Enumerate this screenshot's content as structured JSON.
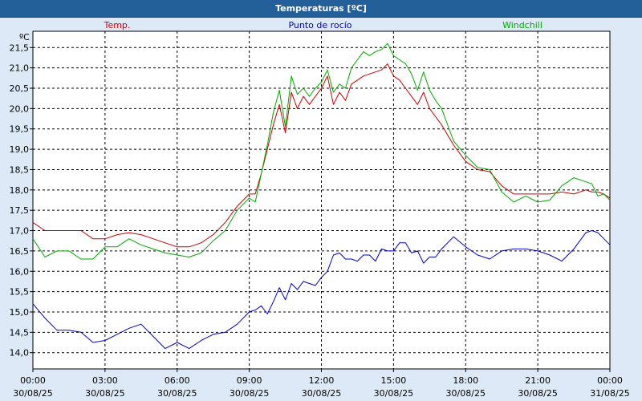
{
  "window": {
    "title": "Temperaturas [ºC]"
  },
  "colors": {
    "background": "#dde9f6",
    "titlebar": "#23609a",
    "plot_bg": "#ffffff",
    "temp": "#cc0000",
    "dew": "#0000cc",
    "windchill": "#00aa00"
  },
  "chart_data": {
    "type": "line",
    "title": "Temperaturas [ºC]",
    "ylabel": "ºC",
    "xlabel": "",
    "ylim": [
      13.6,
      21.9
    ],
    "xlim": [
      0,
      24
    ],
    "grid": true,
    "yticks": [
      14.0,
      14.5,
      15.0,
      15.5,
      16.0,
      16.5,
      17.0,
      17.5,
      18.0,
      18.5,
      19.0,
      19.5,
      20.0,
      20.5,
      21.0,
      21.5
    ],
    "ytick_labels": [
      "14,0",
      "14,5",
      "15,0",
      "15,5",
      "16,0",
      "16,5",
      "17,0",
      "17,5",
      "18,0",
      "18,5",
      "19,0",
      "19,5",
      "20,0",
      "20,5",
      "21,0",
      "21,5"
    ],
    "xticks": [
      {
        "x": 0,
        "time": "00:00",
        "date": "30/08/25"
      },
      {
        "x": 3,
        "time": "03:00",
        "date": "30/08/25"
      },
      {
        "x": 6,
        "time": "06:00",
        "date": "30/08/25"
      },
      {
        "x": 9,
        "time": "09:00",
        "date": "30/08/25"
      },
      {
        "x": 12,
        "time": "12:00",
        "date": "30/08/25"
      },
      {
        "x": 15,
        "time": "15:00",
        "date": "30/08/25"
      },
      {
        "x": 18,
        "time": "18:00",
        "date": "30/08/25"
      },
      {
        "x": 21,
        "time": "21:00",
        "date": "30/08/25"
      },
      {
        "x": 24,
        "time": "00:00",
        "date": "31/08/25"
      }
    ],
    "legend": [
      {
        "name": "Temp.",
        "position": "left"
      },
      {
        "name": "Punto de rocío",
        "position": "center"
      },
      {
        "name": "Windchill",
        "position": "right"
      }
    ],
    "x": [
      0,
      0.5,
      1,
      1.5,
      2,
      2.5,
      3,
      3.5,
      4,
      4.5,
      5,
      5.5,
      6,
      6.5,
      7,
      7.5,
      8,
      8.5,
      9,
      9.25,
      9.5,
      9.75,
      10,
      10.25,
      10.5,
      10.75,
      11,
      11.25,
      11.5,
      11.75,
      12,
      12.25,
      12.5,
      12.75,
      13,
      13.25,
      13.5,
      13.75,
      14,
      14.25,
      14.5,
      14.75,
      15,
      15.25,
      15.5,
      15.75,
      16,
      16.25,
      16.5,
      16.75,
      17,
      17.5,
      18,
      18.5,
      19,
      19.5,
      20,
      20.5,
      21,
      21.5,
      22,
      22.5,
      23,
      23.25,
      23.5,
      23.75,
      24
    ],
    "series": [
      {
        "name": "Temp.",
        "values": [
          17.2,
          17.0,
          17.0,
          17.0,
          17.0,
          16.8,
          16.8,
          16.9,
          16.95,
          16.9,
          16.8,
          16.7,
          16.6,
          16.6,
          16.7,
          16.9,
          17.2,
          17.6,
          17.9,
          17.9,
          18.4,
          19.0,
          19.6,
          20.1,
          19.4,
          20.4,
          20.0,
          20.3,
          20.1,
          20.3,
          20.5,
          20.8,
          20.1,
          20.4,
          20.2,
          20.6,
          20.7,
          20.8,
          20.85,
          20.9,
          20.95,
          21.1,
          20.8,
          20.7,
          20.5,
          20.3,
          20.1,
          20.4,
          20.0,
          19.8,
          19.6,
          19.1,
          18.7,
          18.5,
          18.45,
          18.1,
          17.9,
          17.9,
          17.9,
          17.9,
          17.95,
          17.9,
          18.0,
          17.95,
          17.95,
          17.9,
          17.8
        ]
      },
      {
        "name": "Punto de rocío",
        "values": [
          15.2,
          14.85,
          14.55,
          14.55,
          14.5,
          14.25,
          14.3,
          14.45,
          14.6,
          14.7,
          14.4,
          14.1,
          14.25,
          14.1,
          14.3,
          14.45,
          14.5,
          14.7,
          15.0,
          15.05,
          15.15,
          14.95,
          15.25,
          15.6,
          15.3,
          15.7,
          15.55,
          15.75,
          15.7,
          15.65,
          15.85,
          16.0,
          16.4,
          16.45,
          16.3,
          16.3,
          16.25,
          16.4,
          16.4,
          16.25,
          16.55,
          16.5,
          16.5,
          16.7,
          16.7,
          16.45,
          16.5,
          16.2,
          16.35,
          16.35,
          16.55,
          16.85,
          16.6,
          16.4,
          16.3,
          16.5,
          16.55,
          16.55,
          16.5,
          16.4,
          16.25,
          16.55,
          16.95,
          17.0,
          16.95,
          16.8,
          16.65
        ]
      },
      {
        "name": "Windchill",
        "values": [
          16.8,
          16.35,
          16.5,
          16.5,
          16.3,
          16.3,
          16.6,
          16.6,
          16.8,
          16.65,
          16.55,
          16.45,
          16.4,
          16.35,
          16.45,
          16.75,
          17.0,
          17.5,
          17.8,
          17.7,
          18.4,
          19.1,
          19.9,
          20.45,
          19.55,
          20.8,
          20.35,
          20.5,
          20.3,
          20.5,
          20.65,
          20.95,
          20.4,
          20.6,
          20.5,
          21.0,
          21.2,
          21.4,
          21.3,
          21.4,
          21.45,
          21.6,
          21.3,
          21.2,
          21.1,
          20.85,
          20.45,
          20.9,
          20.45,
          20.2,
          20.0,
          19.2,
          18.85,
          18.55,
          18.5,
          17.95,
          17.7,
          17.85,
          17.7,
          17.75,
          18.1,
          18.3,
          18.2,
          18.15,
          17.85,
          17.9,
          17.75
        ]
      }
    ]
  }
}
